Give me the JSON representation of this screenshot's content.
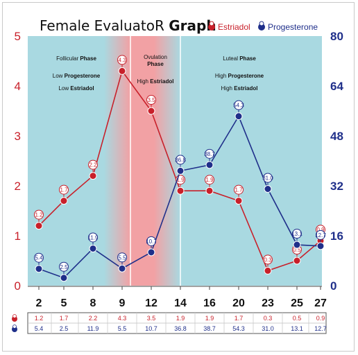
{
  "title": {
    "light": "Female EvaluatoR",
    "bold": "Graph"
  },
  "legend": {
    "estriadol": "Estriadol",
    "progesterone": "Progesterone"
  },
  "colors": {
    "estriadol": "#c8202a",
    "progesterone": "#1f2f8a",
    "phase_bg": "#a9d9e1",
    "ovulation_bg": "#f2a1a4"
  },
  "phases": {
    "follicular": {
      "title_light": "Follicular ",
      "title_bold": "Phase",
      "line1_light": "Low ",
      "line1_bold": "Progesterone",
      "line2_light": "Low ",
      "line2_bold": "Estriadol"
    },
    "ovulation": {
      "title_light": "Ovulation",
      "title_bold": "Phase",
      "line1_light": "High ",
      "line1_bold": "Estriadol"
    },
    "luteal": {
      "title_light": "Luteal ",
      "title_bold": "Phase",
      "line1_light": "High ",
      "line1_bold": "Progesterone",
      "line2_light": "High ",
      "line2_bold": "Estriadol"
    }
  },
  "chart_data": {
    "type": "line",
    "categories": [
      "2",
      "5",
      "8",
      "9",
      "12",
      "14",
      "16",
      "20",
      "23",
      "25",
      "27"
    ],
    "series": [
      {
        "name": "Estriadol",
        "axis": "left",
        "values": [
          1.2,
          1.7,
          2.2,
          4.3,
          3.5,
          1.9,
          1.9,
          1.7,
          0.3,
          0.5,
          0.9
        ],
        "labels": [
          "1.2",
          "1.7",
          "2.2",
          "4.3",
          "3.5",
          "1.9",
          "1.9",
          "1.7",
          "0.3",
          "0.5",
          "0.9"
        ]
      },
      {
        "name": "Progesterone",
        "axis": "right",
        "values": [
          5.4,
          2.5,
          11.9,
          5.5,
          10.7,
          36.8,
          38.7,
          54.3,
          31.0,
          13.1,
          12.7
        ],
        "labels": [
          "5.4",
          "2.5",
          "11.9",
          "5.5",
          "10.7",
          "36.8",
          "38.7",
          "54.3",
          "31.0",
          "13.1",
          "12.7"
        ]
      }
    ],
    "ylim_left": [
      0,
      5
    ],
    "yticks_left": [
      "0",
      "1",
      "2",
      "3",
      "4",
      "5"
    ],
    "ylim_right": [
      0,
      80
    ],
    "yticks_right": [
      "0",
      "16",
      "32",
      "48",
      "64",
      "80"
    ],
    "legend_position": "top-right",
    "grid": false
  }
}
